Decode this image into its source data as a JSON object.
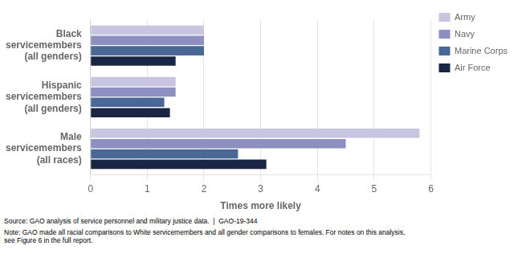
{
  "chart_data": {
    "type": "bar",
    "orientation": "horizontal",
    "categories": [
      "Black\nservicemembers\n(all genders)",
      "Hispanic\nservicemembers\n(all genders)",
      "Male\nservicemembers\n(all races)"
    ],
    "series": [
      {
        "name": "Army",
        "color": "#c8c5e0",
        "values": [
          2.0,
          1.5,
          5.8
        ]
      },
      {
        "name": "Navy",
        "color": "#8c8fbf",
        "values": [
          2.0,
          1.5,
          4.5
        ]
      },
      {
        "name": "Marine Corps",
        "color": "#4a6896",
        "values": [
          2.0,
          1.3,
          2.6
        ]
      },
      {
        "name": "Air Force",
        "color": "#1a2744",
        "values": [
          1.5,
          1.4,
          3.1
        ]
      }
    ],
    "xlabel": "Times more likely",
    "xlim": [
      0,
      6
    ],
    "xticks": [
      0,
      1,
      2,
      3,
      4,
      5,
      6
    ],
    "grid": true,
    "legend": "right",
    "annotations": [
      "Source: GAO analysis of service personnel and military justice data.  |  GAO-19-344",
      "Note: GAO made all racial comparisons to White servicemembers and all gender comparisons to females. For notes on this analysis,\nsee Figure 6 in the full report."
    ]
  }
}
